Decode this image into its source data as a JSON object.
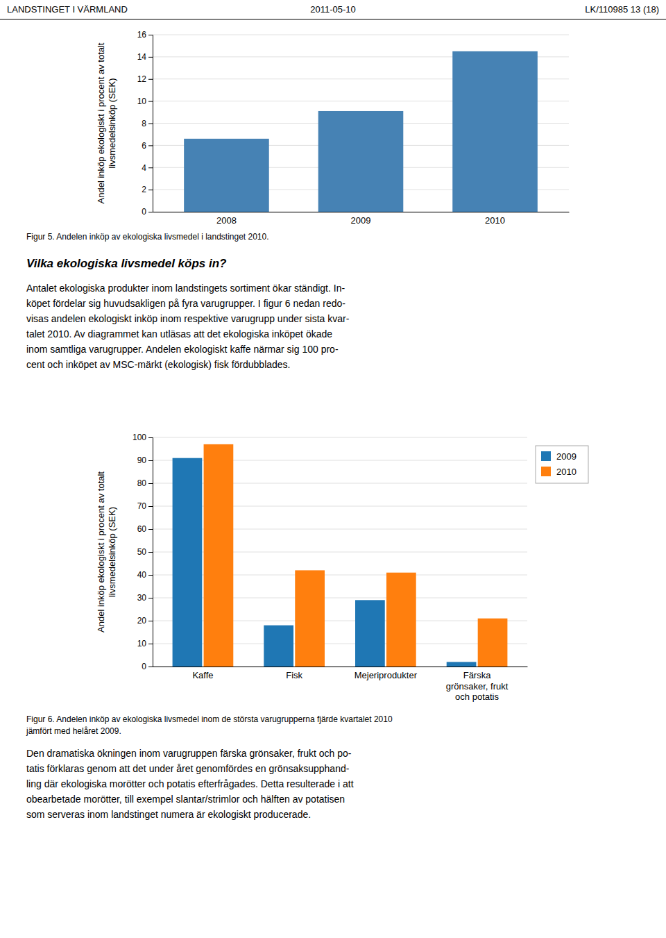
{
  "header_left": "LANDSTINGET I VÄRMLAND",
  "header_center": "2011-05-10",
  "header_right": "LK/110985  13 (18)",
  "chart_data": [
    {
      "type": "bar",
      "categories": [
        "2008",
        "2009",
        "2010"
      ],
      "values": [
        6.6,
        9.1,
        14.5
      ],
      "ylabel": "Andel inköp ekologiskt i procent av totalt\nlivsmedelsinköp (SEK)",
      "ylim": [
        0,
        16
      ],
      "yticks": [
        0,
        2,
        4,
        6,
        8,
        10,
        12,
        14,
        16
      ],
      "grid": true
    },
    {
      "type": "bar",
      "categories": [
        "Kaffe",
        "Fisk",
        "Mejeriprodukter",
        "Färska\ngrönsaker, frukt\noch potatis"
      ],
      "series": [
        {
          "name": "2009",
          "values": [
            91,
            18,
            29,
            2
          ]
        },
        {
          "name": "2010",
          "values": [
            97,
            42,
            41,
            21
          ]
        }
      ],
      "ylabel": "Andel inköp ekologiskt i procent av totalt\nlivsmedelsinköp (SEK)",
      "ylim": [
        0,
        100
      ],
      "yticks": [
        0,
        10,
        20,
        30,
        40,
        50,
        60,
        70,
        80,
        90,
        100
      ],
      "grid": true,
      "legend": "right"
    }
  ],
  "captions": [
    [
      "Figur 5. Andelen inköp av ekologiska livsmedel i landstinget 2010."
    ],
    [
      "Figur 6. Andelen inköp av ekologiska livsmedel inom de största varugrupperna fjärde kvartalet 2010",
      "jämfört med helåret 2009."
    ]
  ],
  "heading": "Vilka ekologiska livsmedel köps in?",
  "paragraphs": [
    [
      "Antalet ekologiska produkter inom landstingets sortiment ökar ständigt. In-",
      "köpet fördelar sig huvudsakligen på fyra varugrupper. I figur 6 nedan redo-",
      "visas andelen ekologiskt inköp inom respektive varugrupp under sista kvar-",
      "talet 2010. Av diagrammet kan utläsas att det ekologiska inköpet ökade",
      "inom samtliga varugrupper. Andelen ekologiskt kaffe närmar sig 100 pro-",
      "cent och inköpet av MSC-märkt (ekologisk) fisk fördubblades."
    ],
    [
      "Den dramatiska ökningen inom varugruppen färska grönsaker, frukt och po-",
      "tatis förklaras genom att det under året genomfördes en grönsaksupphand-",
      "ling där ekologiska morötter och potatis efterfrågades. Detta resulterade i att",
      "obearbetade morötter, till exempel slantar/strimlor och hälften av potatisen",
      "som serveras inom landstinget numera är ekologiskt producerade."
    ]
  ]
}
